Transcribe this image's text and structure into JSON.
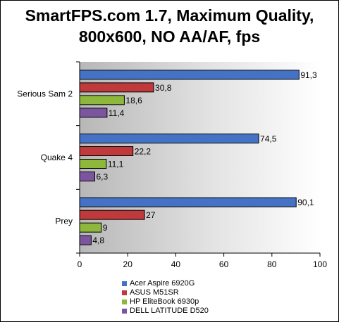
{
  "chart_data": {
    "type": "bar",
    "orientation": "horizontal",
    "title": "SmartFPS.com 1.7, Maximum Quality, 800x600, NO AA/AF, fps",
    "categories": [
      "Serious Sam 2",
      "Quake 4",
      "Prey"
    ],
    "series": [
      {
        "name": "Acer Aspire 6920G",
        "values": [
          91.3,
          74.5,
          90.1
        ],
        "labels": [
          "91,3",
          "74,5",
          "90,1"
        ],
        "color": "#4472C4"
      },
      {
        "name": "ASUS M51SR",
        "values": [
          30.8,
          22.2,
          27
        ],
        "labels": [
          "30,8",
          "22,2",
          "27"
        ],
        "color": "#C0393B"
      },
      {
        "name": "HP EliteBook 6930p",
        "values": [
          18.6,
          11.1,
          9
        ],
        "labels": [
          "18,6",
          "11,1",
          "9"
        ],
        "color": "#8DB83C"
      },
      {
        "name": "DELL LATITUDE D520",
        "values": [
          11.4,
          6.3,
          4.8
        ],
        "labels": [
          "11,4",
          "6,3",
          "4,8"
        ],
        "color": "#7B569F"
      }
    ],
    "xlim": [
      0,
      100
    ],
    "xticks": [
      "0",
      "20",
      "40",
      "60",
      "80",
      "100"
    ],
    "xtick_values": [
      0,
      20,
      40,
      60,
      80,
      100
    ],
    "xlabel": "",
    "ylabel": "",
    "grid": false,
    "legend_position": "bottom",
    "background": "gray gradient"
  }
}
